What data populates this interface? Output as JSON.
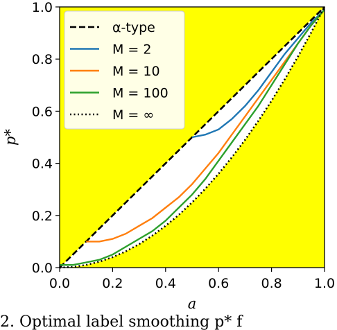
{
  "chart_data": {
    "type": "line",
    "xlabel": "a",
    "ylabel": "p*",
    "xlim": [
      0.0,
      1.0
    ],
    "ylim": [
      0.0,
      1.0
    ],
    "xticks": [
      "0.0",
      "0.2",
      "0.4",
      "0.6",
      "0.8",
      "1.0"
    ],
    "yticks": [
      "0.0",
      "0.2",
      "0.4",
      "0.6",
      "0.8",
      "1.0"
    ],
    "legend_placement": "upper-left",
    "background": "#ffff00",
    "region_fill": "#ffffff",
    "grid": false,
    "x": [
      0.0,
      0.05,
      0.1,
      0.15,
      0.2,
      0.25,
      0.3,
      0.35,
      0.4,
      0.45,
      0.5,
      0.55,
      0.6,
      0.65,
      0.7,
      0.75,
      0.8,
      0.85,
      0.9,
      0.95,
      1.0
    ],
    "series": [
      {
        "name": "α-type",
        "color": "#000000",
        "style": "dashed",
        "values": [
          0.0,
          0.05,
          0.1,
          0.15,
          0.2,
          0.25,
          0.3,
          0.35,
          0.4,
          0.45,
          0.5,
          0.55,
          0.6,
          0.65,
          0.7,
          0.75,
          0.8,
          0.85,
          0.9,
          0.95,
          1.0
        ]
      },
      {
        "name": "M = 2",
        "color": "#1f77b4",
        "style": "solid",
        "values": [
          null,
          null,
          null,
          null,
          null,
          null,
          null,
          null,
          null,
          null,
          0.5,
          0.51,
          0.53,
          0.57,
          0.62,
          0.68,
          0.75,
          0.82,
          0.88,
          0.94,
          0.99
        ]
      },
      {
        "name": "M = 10",
        "color": "#ff7f0e",
        "style": "solid",
        "values": [
          null,
          null,
          0.1,
          0.1,
          0.11,
          0.13,
          0.16,
          0.19,
          0.23,
          0.27,
          0.32,
          0.38,
          0.44,
          0.51,
          0.58,
          0.65,
          0.72,
          0.79,
          0.86,
          0.93,
          0.99
        ]
      },
      {
        "name": "M = 100",
        "color": "#2ca02c",
        "style": "solid",
        "values": [
          0.01,
          0.01,
          0.02,
          0.03,
          0.05,
          0.08,
          0.11,
          0.14,
          0.18,
          0.23,
          0.28,
          0.34,
          0.41,
          0.48,
          0.55,
          0.62,
          0.7,
          0.78,
          0.86,
          0.93,
          0.99
        ]
      },
      {
        "name": "M = ∞",
        "color": "#000000",
        "style": "dotted",
        "values": [
          0.0,
          0.0025,
          0.01,
          0.0225,
          0.04,
          0.0625,
          0.09,
          0.1225,
          0.16,
          0.2025,
          0.25,
          0.3025,
          0.36,
          0.4225,
          0.49,
          0.5625,
          0.64,
          0.7225,
          0.81,
          0.9025,
          1.0
        ]
      }
    ]
  },
  "caption": {
    "text": "2.  Optimal label smoothing p* f"
  }
}
